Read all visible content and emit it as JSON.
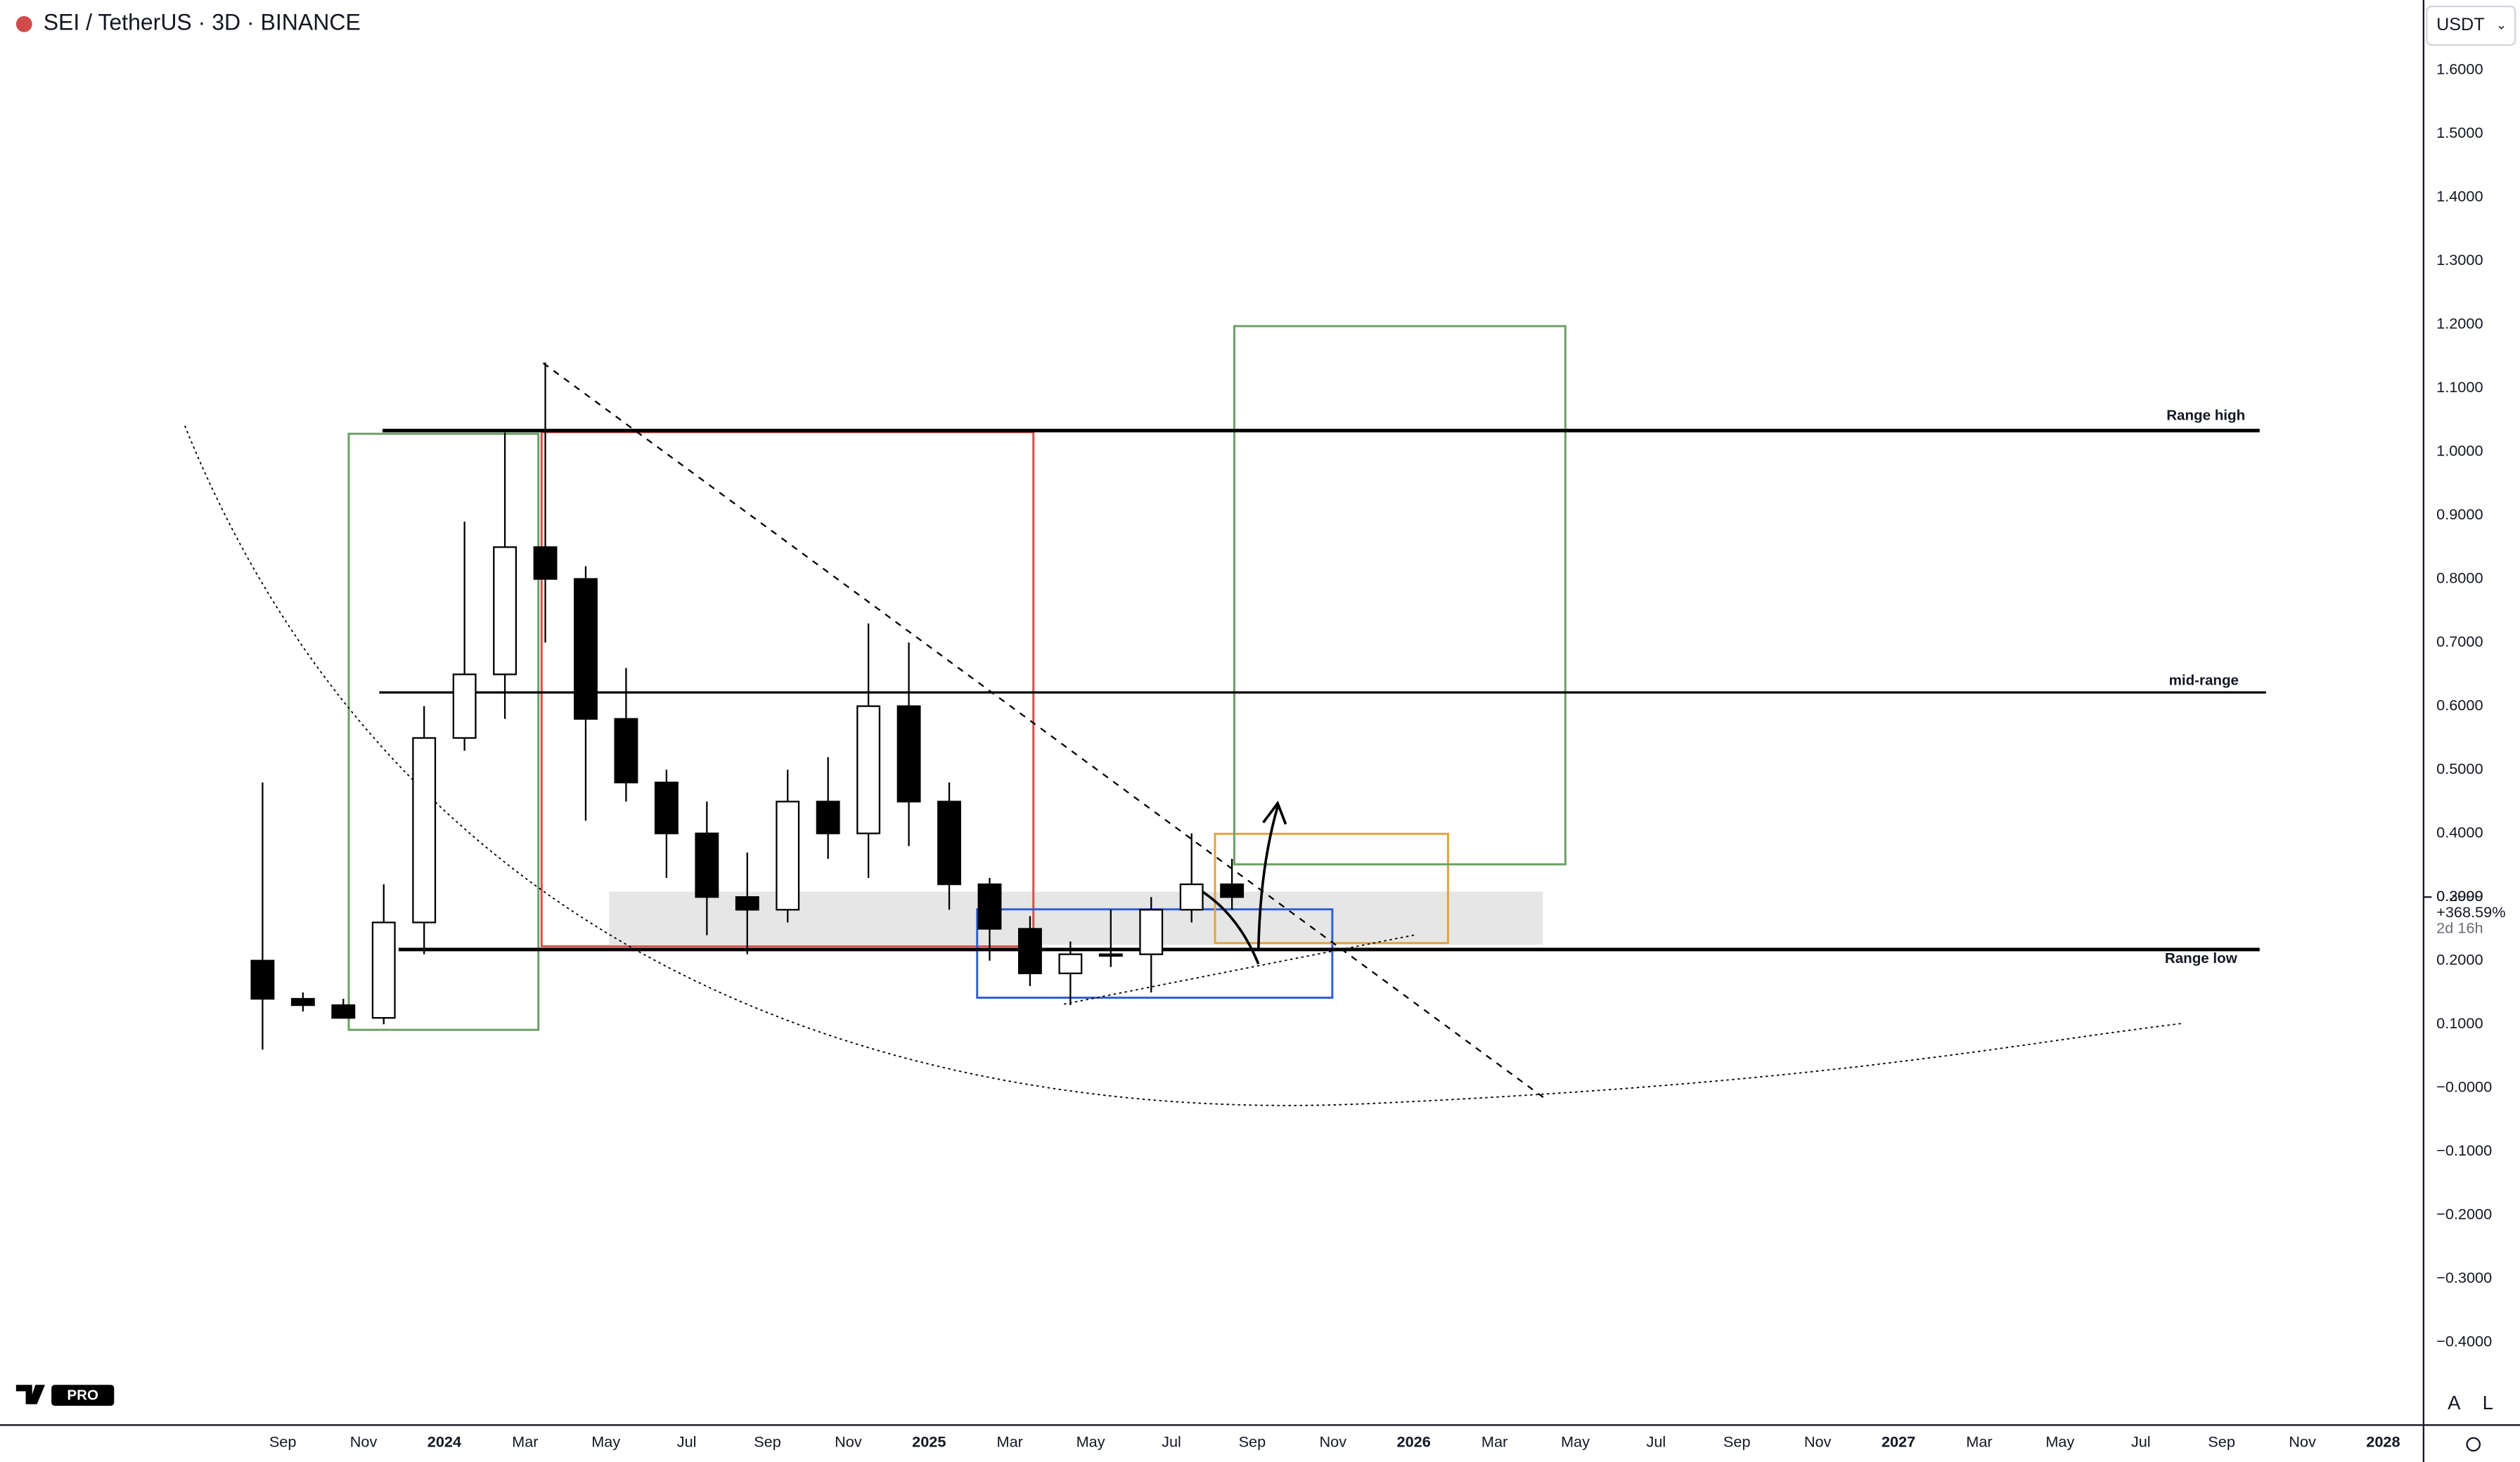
{
  "chart_data": {
    "type": "candlestick",
    "title": "SEI / TetherUS · 3D · BINANCE",
    "currency_button": "USDT",
    "scale_buttons": [
      "A",
      "L"
    ],
    "logo": "PRO",
    "x": [
      "2023-08",
      "2023-09",
      "2023-10",
      "2023-11",
      "2023-12",
      "2024-01",
      "2024-02",
      "2024-03",
      "2024-04",
      "2024-05",
      "2024-06",
      "2024-07",
      "2024-08",
      "2024-09",
      "2024-10",
      "2024-11",
      "2024-12",
      "2025-01",
      "2025-02",
      "2025-03",
      "2025-04",
      "2025-05",
      "2025-06",
      "2025-07",
      "2025-08"
    ],
    "open": [
      0.2,
      0.14,
      0.13,
      0.11,
      0.26,
      0.55,
      0.65,
      0.85,
      0.8,
      0.58,
      0.48,
      0.4,
      0.3,
      0.28,
      0.45,
      0.4,
      0.6,
      0.45,
      0.32,
      0.25,
      0.18,
      0.21,
      0.21,
      0.28,
      0.32
    ],
    "high": [
      0.48,
      0.15,
      0.14,
      0.32,
      0.6,
      0.89,
      1.03,
      1.14,
      0.82,
      0.66,
      0.5,
      0.45,
      0.37,
      0.5,
      0.52,
      0.73,
      0.7,
      0.48,
      0.33,
      0.27,
      0.23,
      0.28,
      0.3,
      0.4,
      0.36
    ],
    "low": [
      0.06,
      0.12,
      0.11,
      0.1,
      0.21,
      0.53,
      0.58,
      0.7,
      0.42,
      0.45,
      0.33,
      0.24,
      0.21,
      0.26,
      0.36,
      0.33,
      0.38,
      0.28,
      0.2,
      0.16,
      0.13,
      0.19,
      0.15,
      0.26,
      0.28
    ],
    "close": [
      0.14,
      0.13,
      0.11,
      0.26,
      0.55,
      0.65,
      0.85,
      0.8,
      0.58,
      0.48,
      0.4,
      0.3,
      0.28,
      0.45,
      0.4,
      0.6,
      0.45,
      0.32,
      0.25,
      0.18,
      0.21,
      0.21,
      0.28,
      0.32,
      0.2999
    ],
    "last_price": 0.2999,
    "change": "+368.59%",
    "countdown": "2d 16h",
    "annotations": [
      "Range high",
      "mid-range",
      "Range low"
    ],
    "xlim": [
      "2023-02",
      "2028-02"
    ],
    "xticks": [
      {
        "value": "2023-09",
        "label": "Sep"
      },
      {
        "value": "2023-11",
        "label": "Nov"
      },
      {
        "value": "2024-01",
        "label": "2024"
      },
      {
        "value": "2024-03",
        "label": "Mar"
      },
      {
        "value": "2024-05",
        "label": "May"
      },
      {
        "value": "2024-07",
        "label": "Jul"
      },
      {
        "value": "2024-09",
        "label": "Sep"
      },
      {
        "value": "2024-11",
        "label": "Nov"
      },
      {
        "value": "2025-01",
        "label": "2025"
      },
      {
        "value": "2025-03",
        "label": "Mar"
      },
      {
        "value": "2025-05",
        "label": "May"
      },
      {
        "value": "2025-07",
        "label": "Jul"
      },
      {
        "value": "2025-09",
        "label": "Sep"
      },
      {
        "value": "2025-11",
        "label": "Nov"
      },
      {
        "value": "2026-01",
        "label": "2026"
      },
      {
        "value": "2026-03",
        "label": "Mar"
      },
      {
        "value": "2026-05",
        "label": "May"
      },
      {
        "value": "2026-07",
        "label": "Jul"
      },
      {
        "value": "2026-09",
        "label": "Sep"
      },
      {
        "value": "2026-11",
        "label": "Nov"
      },
      {
        "value": "2027-01",
        "label": "2027"
      },
      {
        "value": "2027-03",
        "label": "Mar"
      },
      {
        "value": "2027-05",
        "label": "May"
      },
      {
        "value": "2027-07",
        "label": "Jul"
      },
      {
        "value": "2027-09",
        "label": "Sep"
      },
      {
        "value": "2027-11",
        "label": "Nov"
      },
      {
        "value": "2028-01",
        "label": "2028"
      }
    ],
    "ylim": [
      -0.53,
      1.71
    ],
    "yticks": [
      {
        "value": 1.6,
        "label": "1.6000"
      },
      {
        "value": 1.5,
        "label": "1.5000"
      },
      {
        "value": 1.4,
        "label": "1.4000"
      },
      {
        "value": 1.3,
        "label": "1.3000"
      },
      {
        "value": 1.2,
        "label": "1.2000"
      },
      {
        "value": 1.1,
        "label": "1.1000"
      },
      {
        "value": 1.0,
        "label": "1.0000"
      },
      {
        "value": 0.9,
        "label": "0.9000"
      },
      {
        "value": 0.8,
        "label": "0.8000"
      },
      {
        "value": 0.7,
        "label": "0.7000"
      },
      {
        "value": 0.6,
        "label": "0.6000"
      },
      {
        "value": 0.5,
        "label": "0.5000"
      },
      {
        "value": 0.4,
        "label": "0.4000"
      },
      {
        "value": 0.3,
        "label": "0.3000"
      },
      {
        "value": 0.2,
        "label": "0.2000"
      },
      {
        "value": 0.1,
        "label": "0.1000"
      },
      {
        "value": 0,
        "label": "−0.0000"
      },
      {
        "value": -0.1,
        "label": "−0.1000"
      },
      {
        "value": -0.2,
        "label": "−0.2000"
      },
      {
        "value": -0.3,
        "label": "−0.3000"
      },
      {
        "value": -0.4,
        "label": "−0.4000"
      }
    ],
    "grid": false,
    "up_color": "#ffffff",
    "down_color": "#000000",
    "wick_color": "#000000"
  }
}
